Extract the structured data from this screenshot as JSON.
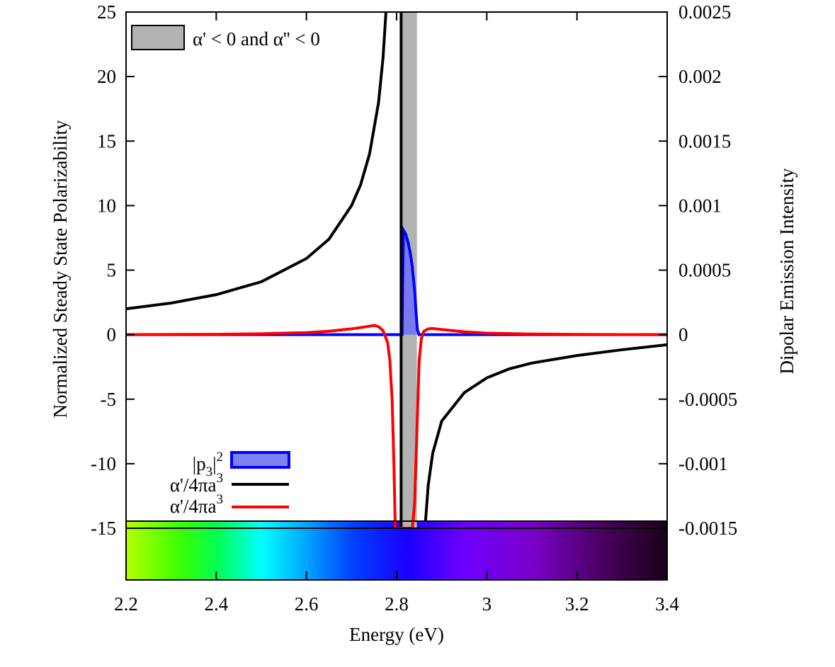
{
  "chart_data": {
    "type": "line",
    "title": "",
    "xlabel": "Energy (eV)",
    "ylabel_left": "Normalized Steady State Polarizability",
    "ylabel_right": "Dipolar Emission Intensity",
    "xlim": [
      2.2,
      3.4
    ],
    "ylim_left": [
      -15,
      25
    ],
    "ylim_right": [
      -0.0015,
      0.0025
    ],
    "x_ticks": [
      "2.2",
      "2.4",
      "2.6",
      "2.8",
      "3",
      "3.2",
      "3.4"
    ],
    "x_tick_values": [
      2.2,
      2.4,
      2.6,
      2.8,
      3.0,
      3.2,
      3.4
    ],
    "y_ticks_left": [
      "-15",
      "-10",
      "-5",
      "0",
      "5",
      "10",
      "15",
      "20",
      "25"
    ],
    "y_tick_values_left": [
      -15,
      -10,
      -5,
      0,
      5,
      10,
      15,
      20,
      25
    ],
    "y_ticks_right": [
      "-0.0015",
      "-0.001",
      "-0.0005",
      "0",
      "0.0005",
      "0.001",
      "0.0015",
      "0.002",
      "0.0025"
    ],
    "y_tick_values_right": [
      -0.0015,
      -0.001,
      -0.0005,
      0,
      0.0005,
      0.001,
      0.0015,
      0.002,
      0.0025
    ],
    "shaded_region": {
      "label": "α' < 0 and α'' < 0",
      "x_start": 2.812,
      "x_end": 2.845,
      "color": "#b3b3b3"
    },
    "resonance_line_x": 2.81,
    "spectrum_strip": {
      "x_start": 2.2,
      "x_end": 3.4,
      "description": "visible color spectrum bar"
    },
    "series": [
      {
        "name": "|p3|^2",
        "legend_main": "|p",
        "legend_sub": "3",
        "legend_tail": "|",
        "legend_sup": "2",
        "axis": "right",
        "style": "filled",
        "color": "#0000ff",
        "fill": "#8080f0",
        "x": [
          2.2,
          2.79,
          2.812,
          2.815,
          2.82,
          2.825,
          2.83,
          2.835,
          2.84,
          2.843,
          2.846,
          2.85,
          3.4
        ],
        "values": [
          0,
          0,
          0,
          0.00081,
          0.00078,
          0.00072,
          0.00064,
          0.00052,
          0.00034,
          0.00018,
          4e-05,
          0,
          0
        ]
      },
      {
        "name": "α'/4πa^3",
        "legend_main": "α'/4πa",
        "legend_sup": "3",
        "axis": "left",
        "style": "line",
        "color": "#000000",
        "resonance": 2.81,
        "x": [
          2.2,
          2.3,
          2.4,
          2.5,
          2.6,
          2.65,
          2.7,
          2.72,
          2.74,
          2.76,
          2.77,
          2.78,
          2.785,
          2.79,
          2.864,
          2.87,
          2.88,
          2.9,
          2.95,
          3.0,
          3.05,
          3.1,
          3.2,
          3.3,
          3.4
        ],
        "values": [
          2.0,
          2.45,
          3.1,
          4.1,
          5.9,
          7.4,
          10.0,
          11.6,
          14.0,
          18.0,
          21.5,
          27.0,
          31.0,
          37.0,
          -14.5,
          -11.7,
          -9.2,
          -6.7,
          -4.5,
          -3.35,
          -2.65,
          -2.2,
          -1.62,
          -1.17,
          -0.78
        ]
      },
      {
        "name": "α''/4πa^3",
        "legend_main": "α'/4πa",
        "legend_sup": "3",
        "axis": "left",
        "style": "line",
        "color": "#ff0000",
        "x": [
          2.2,
          2.4,
          2.5,
          2.6,
          2.65,
          2.7,
          2.73,
          2.75,
          2.76,
          2.77,
          2.78,
          2.785,
          2.79,
          2.794,
          2.797,
          2.8,
          2.805,
          2.81,
          2.815,
          2.82,
          2.825,
          2.83,
          2.835,
          2.84,
          2.845,
          2.85,
          2.855,
          2.86,
          2.87,
          2.88,
          2.9,
          2.95,
          3.0,
          3.1,
          3.2,
          3.3,
          3.4
        ],
        "values": [
          0,
          0.03,
          0.07,
          0.16,
          0.27,
          0.45,
          0.6,
          0.72,
          0.62,
          0.3,
          -0.6,
          -2.0,
          -5.0,
          -10.0,
          -15.0,
          -15.0,
          -15.0,
          -15.0,
          -15.0,
          -15.0,
          -15.0,
          -15.0,
          -15.0,
          -13.0,
          -7.5,
          -2.0,
          -0.3,
          0.25,
          0.45,
          0.48,
          0.4,
          0.22,
          0.12,
          0.05,
          0.02,
          0.01,
          0
        ]
      }
    ]
  }
}
